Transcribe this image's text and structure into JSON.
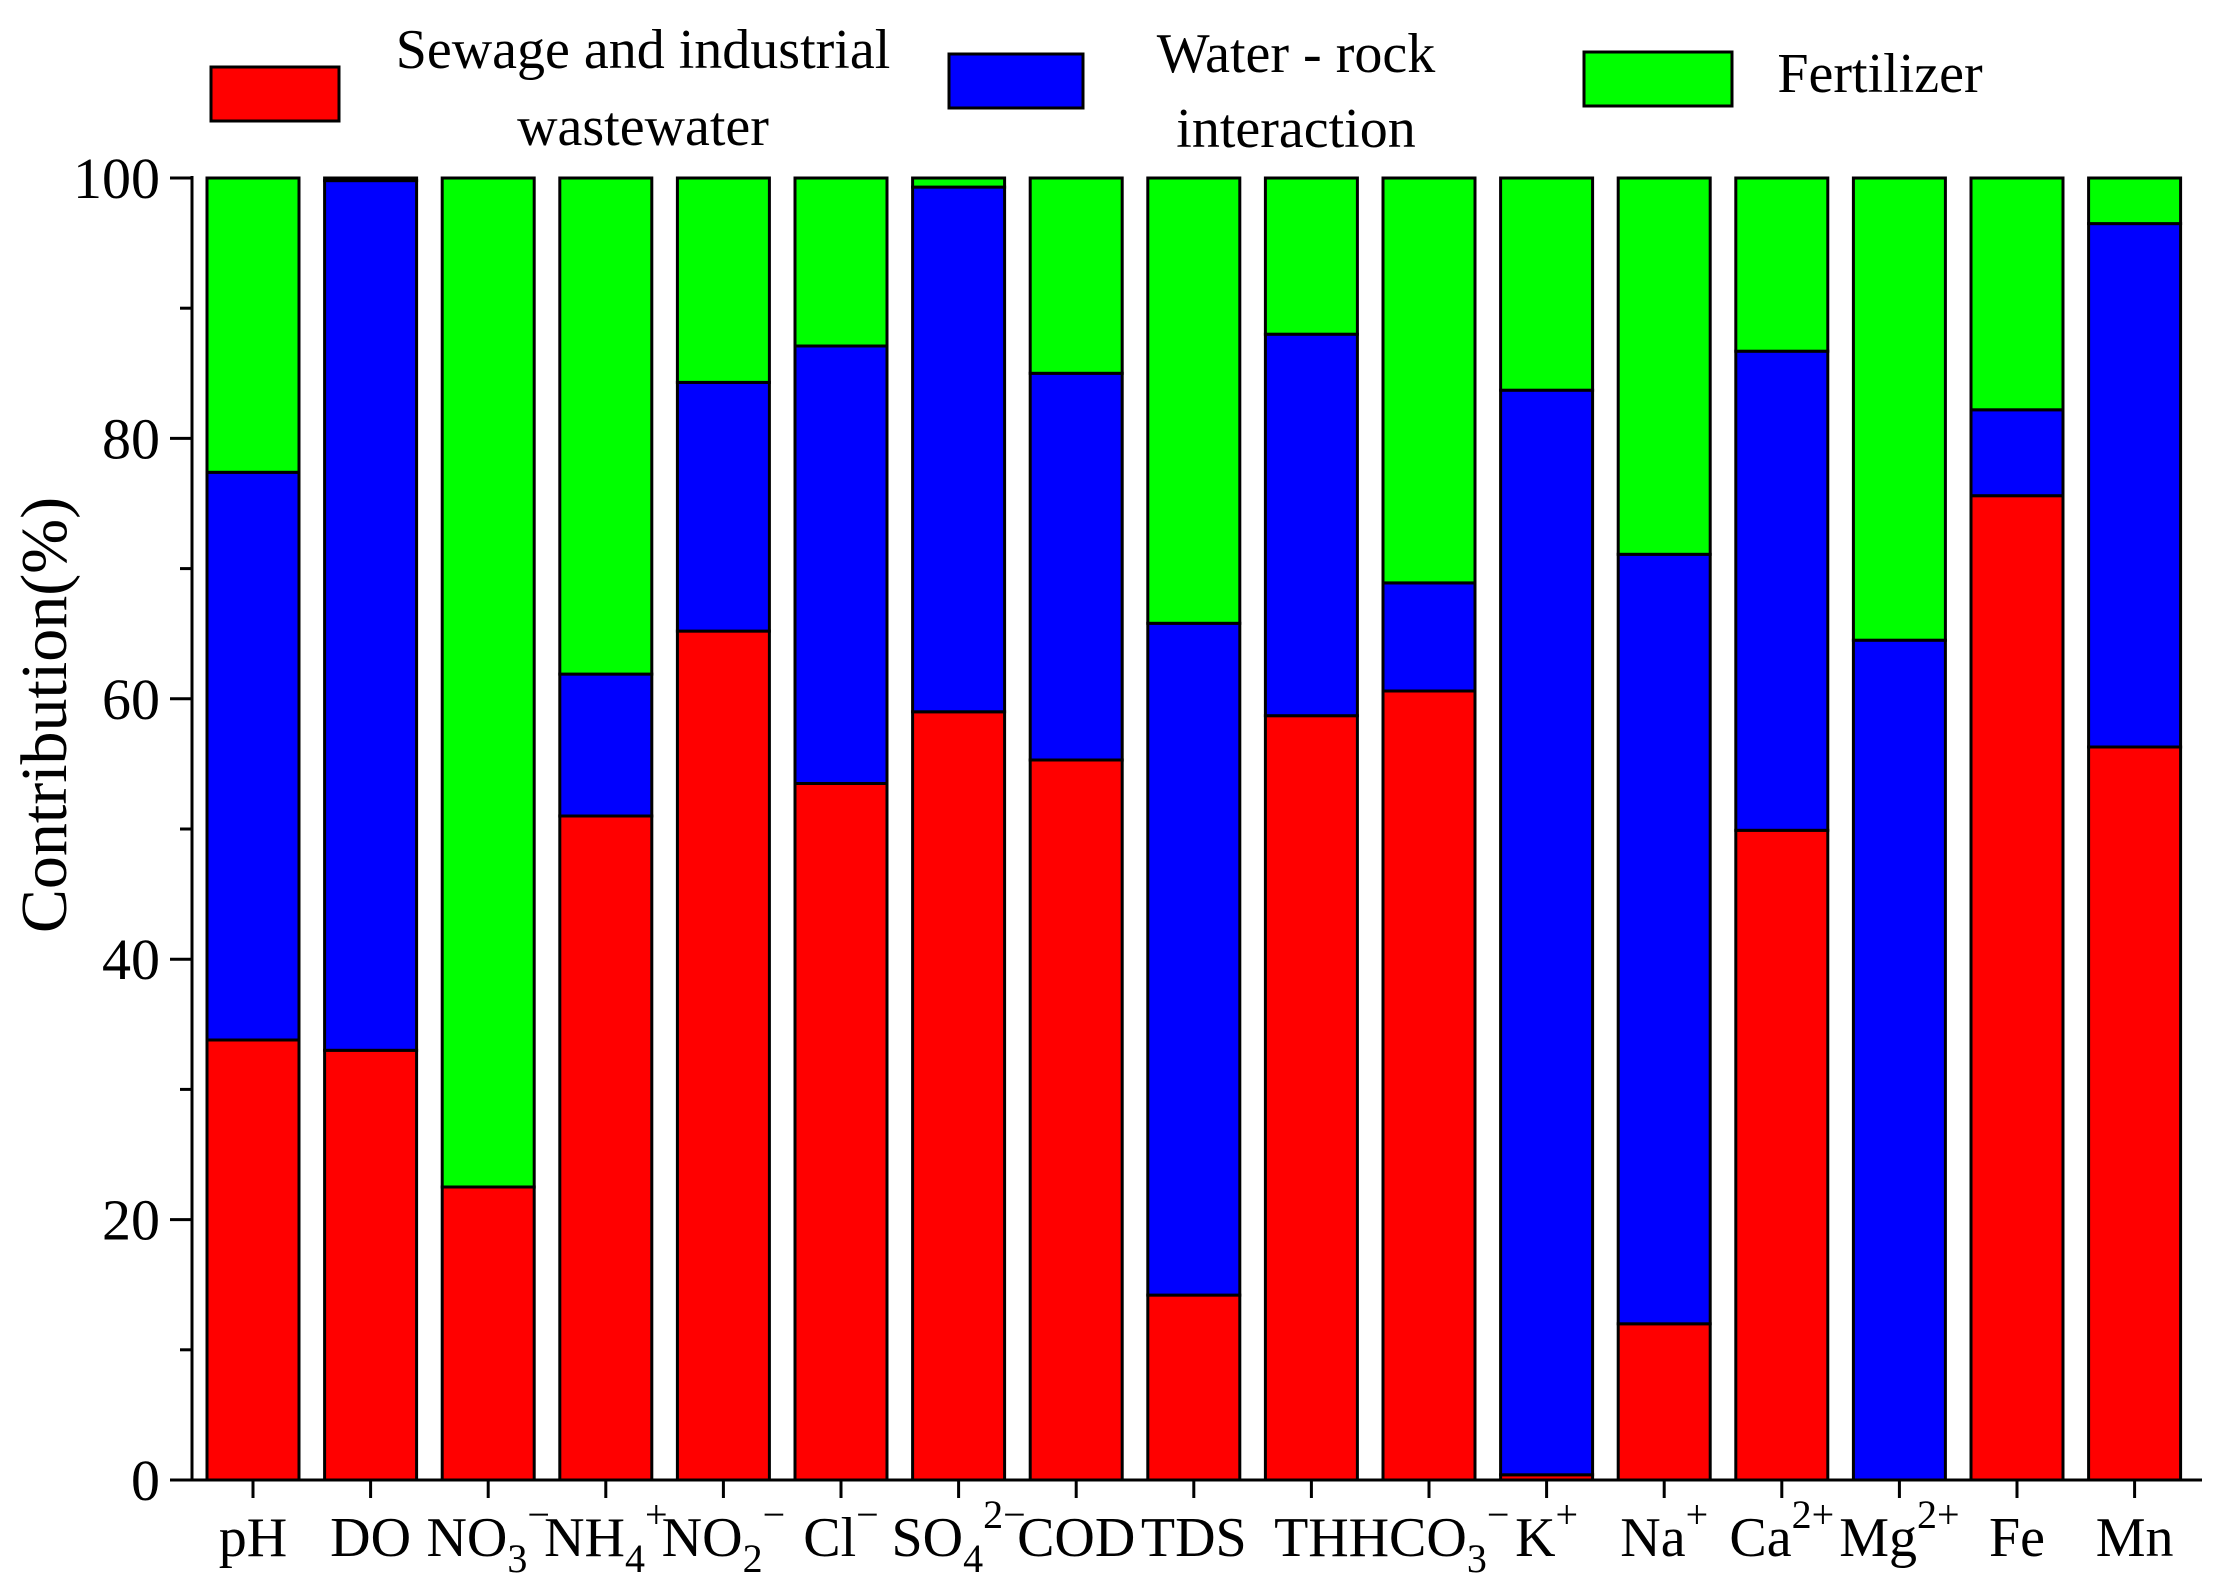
{
  "chart_data": {
    "type": "bar",
    "stacked": true,
    "title": "",
    "xlabel": "",
    "ylabel": "Contribution(%)",
    "ylim": [
      0,
      100
    ],
    "yticks": [
      "0",
      "20",
      "40",
      "60",
      "80",
      "100"
    ],
    "grid": false,
    "legend_position": "top",
    "categories": [
      {
        "base": "pH",
        "sup": "",
        "sub": ""
      },
      {
        "base": "DO",
        "sup": "",
        "sub": ""
      },
      {
        "base": "NO",
        "sub": "3",
        "sup": "−"
      },
      {
        "base": "NH",
        "sub": "4",
        "sup": "+"
      },
      {
        "base": "NO",
        "sub": "2",
        "sup": "−"
      },
      {
        "base": "Cl",
        "sub": "",
        "sup": "−"
      },
      {
        "base": "SO",
        "sub": "4",
        "sup": "2−"
      },
      {
        "base": "COD",
        "sub": "",
        "sup": ""
      },
      {
        "base": "TDS",
        "sub": "",
        "sup": ""
      },
      {
        "base": "TH",
        "sub": "",
        "sup": ""
      },
      {
        "base": "HCO",
        "sub": "3",
        "sup": "−"
      },
      {
        "base": "K",
        "sub": "",
        "sup": "+"
      },
      {
        "base": "Na",
        "sub": "",
        "sup": "+"
      },
      {
        "base": "Ca",
        "sub": "",
        "sup": "2+"
      },
      {
        "base": "Mg",
        "sub": "",
        "sup": "2+"
      },
      {
        "base": "Fe",
        "sub": "",
        "sup": ""
      },
      {
        "base": "Mn",
        "sub": "",
        "sup": ""
      }
    ],
    "series": [
      {
        "name": "Sewage and industrial wastewater",
        "legend_lines": [
          "Sewage and industrial",
          "wastewater"
        ],
        "color": "#ff0000",
        "values": [
          33.8,
          33.0,
          22.5,
          51.0,
          65.2,
          53.5,
          59.0,
          55.3,
          14.2,
          58.7,
          60.6,
          0.4,
          12.0,
          49.9,
          0.0,
          75.6,
          56.3
        ]
      },
      {
        "name": "Water - rock interaction",
        "legend_lines": [
          "Water - rock",
          "interaction"
        ],
        "color": "#0000ff",
        "values": [
          43.6,
          66.8,
          0.0,
          10.9,
          19.1,
          33.6,
          40.3,
          29.7,
          51.6,
          29.3,
          8.3,
          83.3,
          59.1,
          36.8,
          64.5,
          6.6,
          40.2
        ]
      },
      {
        "name": "Fertilizer",
        "legend_lines": [
          "Fertilizer"
        ],
        "color": "#00ff00",
        "values": [
          22.6,
          0.2,
          77.5,
          38.1,
          15.7,
          12.9,
          0.7,
          15.0,
          34.2,
          12.0,
          31.1,
          16.3,
          28.9,
          13.3,
          35.5,
          17.8,
          3.5
        ]
      }
    ]
  }
}
